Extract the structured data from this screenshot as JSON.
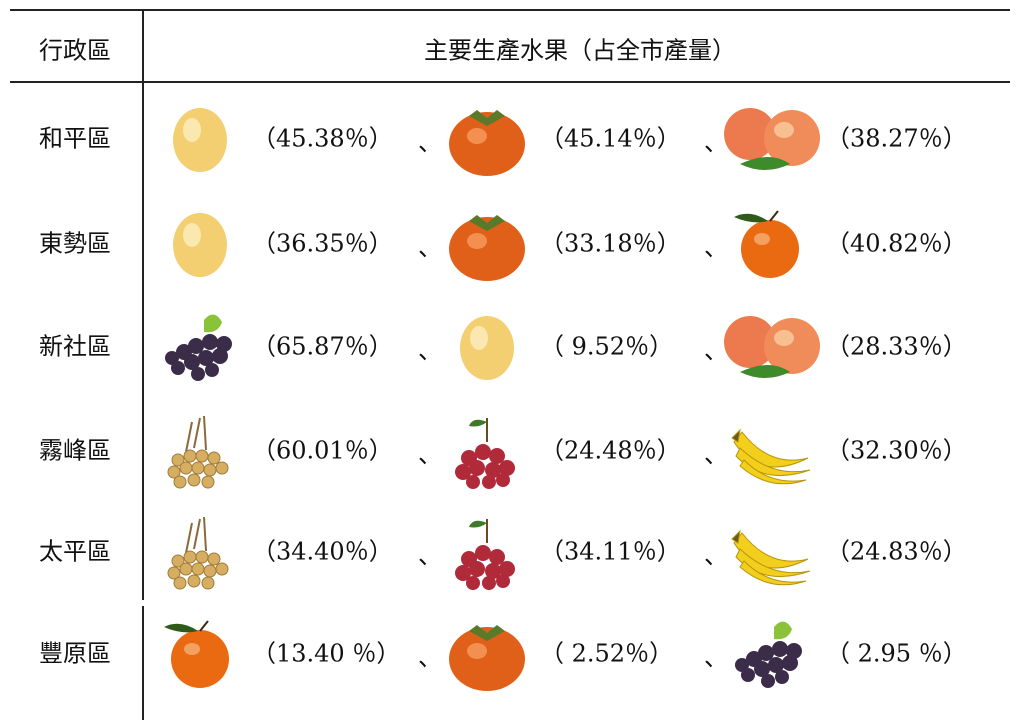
{
  "table": {
    "header": [
      "行政區",
      "主要生產水果（占全市產量）"
    ],
    "separator": "、",
    "rows": [
      {
        "district": "和平區",
        "shares": [
          "（45.38％）",
          "（45.14％）",
          "（38.27％）"
        ]
      },
      {
        "district": "東勢區",
        "shares": [
          "（36.35％）",
          "（33.18％）",
          "（40.82％）"
        ]
      },
      {
        "district": "新社區",
        "shares": [
          "（65.87％）",
          "（ 9.52％）",
          "（28.33％）"
        ]
      },
      {
        "district": "霧峰區",
        "shares": [
          "（60.01％）",
          "（24.48％）",
          "（32.30％）"
        ]
      },
      {
        "district": "太平區",
        "shares": [
          "（34.40％）",
          "（34.11％）",
          "（24.83％）"
        ]
      },
      {
        "district": "豐原區",
        "shares": [
          "（13.40 ％）",
          "（ 2.52％）",
          "（ 2.95 ％）"
        ]
      }
    ]
  }
}
